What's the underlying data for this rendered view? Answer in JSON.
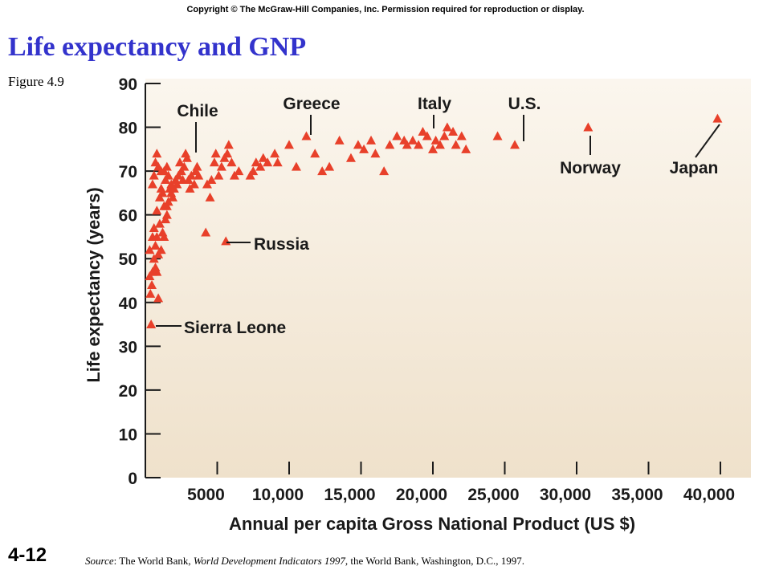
{
  "header": {
    "copyright": "Copyright © The McGraw-Hill Companies, Inc. Permission required for reproduction or display.",
    "title": "Life expectancy and GNP",
    "figure_number": "Figure 4.9"
  },
  "footer": {
    "slide_number": "4-12",
    "source_prefix": "Source",
    "source_sep": ": The World Bank, ",
    "source_italic": "World Development Indicators 1997",
    "source_suffix": ", the World Bank, Washington, D.C., 1997."
  },
  "colors": {
    "marker": "#e8402a",
    "plot_background_top": "#fbf6ee",
    "plot_background_bottom": "#efe1cb",
    "axis": "#1a1a1a"
  },
  "chart_data": {
    "type": "scatter",
    "title": "",
    "xlabel": "Annual per capita Gross National Product (US $)",
    "ylabel": "Life expectancy (years)",
    "xlim": [
      0,
      40000
    ],
    "ylim": [
      0,
      90
    ],
    "x_ticks": [
      5000,
      10000,
      15000,
      20000,
      25000,
      30000,
      35000,
      40000
    ],
    "x_tick_labels": [
      "5000",
      "10,000",
      "15,000",
      "20,000",
      "25,000",
      "30,000",
      "35,000",
      "40,000"
    ],
    "y_ticks": [
      0,
      10,
      20,
      30,
      40,
      50,
      60,
      70,
      80,
      90
    ],
    "y_tick_labels": [
      "0",
      "10",
      "20",
      "30",
      "40",
      "50",
      "60",
      "70",
      "80",
      "90"
    ],
    "grid": false,
    "marker": "triangle",
    "points": [
      [
        400,
        35
      ],
      [
        300,
        46
      ],
      [
        350,
        42
      ],
      [
        450,
        44
      ],
      [
        500,
        47
      ],
      [
        300,
        52
      ],
      [
        600,
        50
      ],
      [
        700,
        48
      ],
      [
        800,
        47
      ],
      [
        900,
        41
      ],
      [
        500,
        55
      ],
      [
        600,
        57
      ],
      [
        700,
        53
      ],
      [
        800,
        55
      ],
      [
        900,
        51
      ],
      [
        1000,
        58
      ],
      [
        1100,
        52
      ],
      [
        1200,
        56
      ],
      [
        1300,
        55
      ],
      [
        1400,
        59
      ],
      [
        1500,
        62
      ],
      [
        800,
        61
      ],
      [
        1000,
        64
      ],
      [
        1100,
        66
      ],
      [
        1200,
        65
      ],
      [
        1300,
        62
      ],
      [
        1400,
        68
      ],
      [
        1500,
        60
      ],
      [
        1600,
        63
      ],
      [
        1800,
        67
      ],
      [
        500,
        67
      ],
      [
        600,
        69
      ],
      [
        700,
        72
      ],
      [
        800,
        74
      ],
      [
        900,
        71
      ],
      [
        1100,
        70
      ],
      [
        1300,
        70
      ],
      [
        1500,
        71
      ],
      [
        1600,
        69
      ],
      [
        1700,
        66
      ],
      [
        1800,
        65
      ],
      [
        1900,
        64
      ],
      [
        2000,
        66
      ],
      [
        2100,
        68
      ],
      [
        2200,
        67
      ],
      [
        2300,
        69
      ],
      [
        2400,
        72
      ],
      [
        2500,
        70
      ],
      [
        2600,
        68
      ],
      [
        2700,
        71
      ],
      [
        2800,
        74
      ],
      [
        2900,
        73
      ],
      [
        3000,
        68
      ],
      [
        3100,
        66
      ],
      [
        3200,
        69
      ],
      [
        3400,
        67
      ],
      [
        3500,
        70
      ],
      [
        3600,
        71
      ],
      [
        3700,
        69
      ],
      [
        4200,
        56
      ],
      [
        4300,
        67
      ],
      [
        4500,
        64
      ],
      [
        4600,
        68
      ],
      [
        4800,
        72
      ],
      [
        4900,
        74
      ],
      [
        5100,
        69
      ],
      [
        5300,
        71
      ],
      [
        5500,
        73
      ],
      [
        5700,
        74
      ],
      [
        5800,
        76
      ],
      [
        6000,
        72
      ],
      [
        6200,
        69
      ],
      [
        6500,
        70
      ],
      [
        5600,
        54
      ],
      [
        7300,
        69
      ],
      [
        7500,
        70
      ],
      [
        7700,
        72
      ],
      [
        8000,
        71
      ],
      [
        8200,
        73
      ],
      [
        8500,
        72
      ],
      [
        9000,
        74
      ],
      [
        9200,
        72
      ],
      [
        10000,
        76
      ],
      [
        10500,
        71
      ],
      [
        11200,
        78
      ],
      [
        11800,
        74
      ],
      [
        12300,
        70
      ],
      [
        12800,
        71
      ],
      [
        13500,
        77
      ],
      [
        14300,
        73
      ],
      [
        14800,
        76
      ],
      [
        15200,
        75
      ],
      [
        15700,
        77
      ],
      [
        16000,
        74
      ],
      [
        16600,
        70
      ],
      [
        17000,
        76
      ],
      [
        17500,
        78
      ],
      [
        18000,
        77
      ],
      [
        18200,
        76
      ],
      [
        18600,
        77
      ],
      [
        19000,
        76
      ],
      [
        19300,
        79
      ],
      [
        19600,
        78
      ],
      [
        20000,
        75
      ],
      [
        20200,
        77
      ],
      [
        20500,
        76
      ],
      [
        20800,
        78
      ],
      [
        21000,
        80
      ],
      [
        21400,
        79
      ],
      [
        21600,
        76
      ],
      [
        22000,
        78
      ],
      [
        22300,
        75
      ],
      [
        24500,
        78
      ],
      [
        25700,
        76
      ],
      [
        30800,
        80
      ],
      [
        39800,
        82
      ]
    ],
    "annotations": [
      {
        "label": "Chile"
      },
      {
        "label": "Greece"
      },
      {
        "label": "Italy"
      },
      {
        "label": "U.S."
      },
      {
        "label": "Norway"
      },
      {
        "label": "Japan"
      },
      {
        "label": "Russia"
      },
      {
        "label": "Sierra Leone"
      }
    ]
  }
}
